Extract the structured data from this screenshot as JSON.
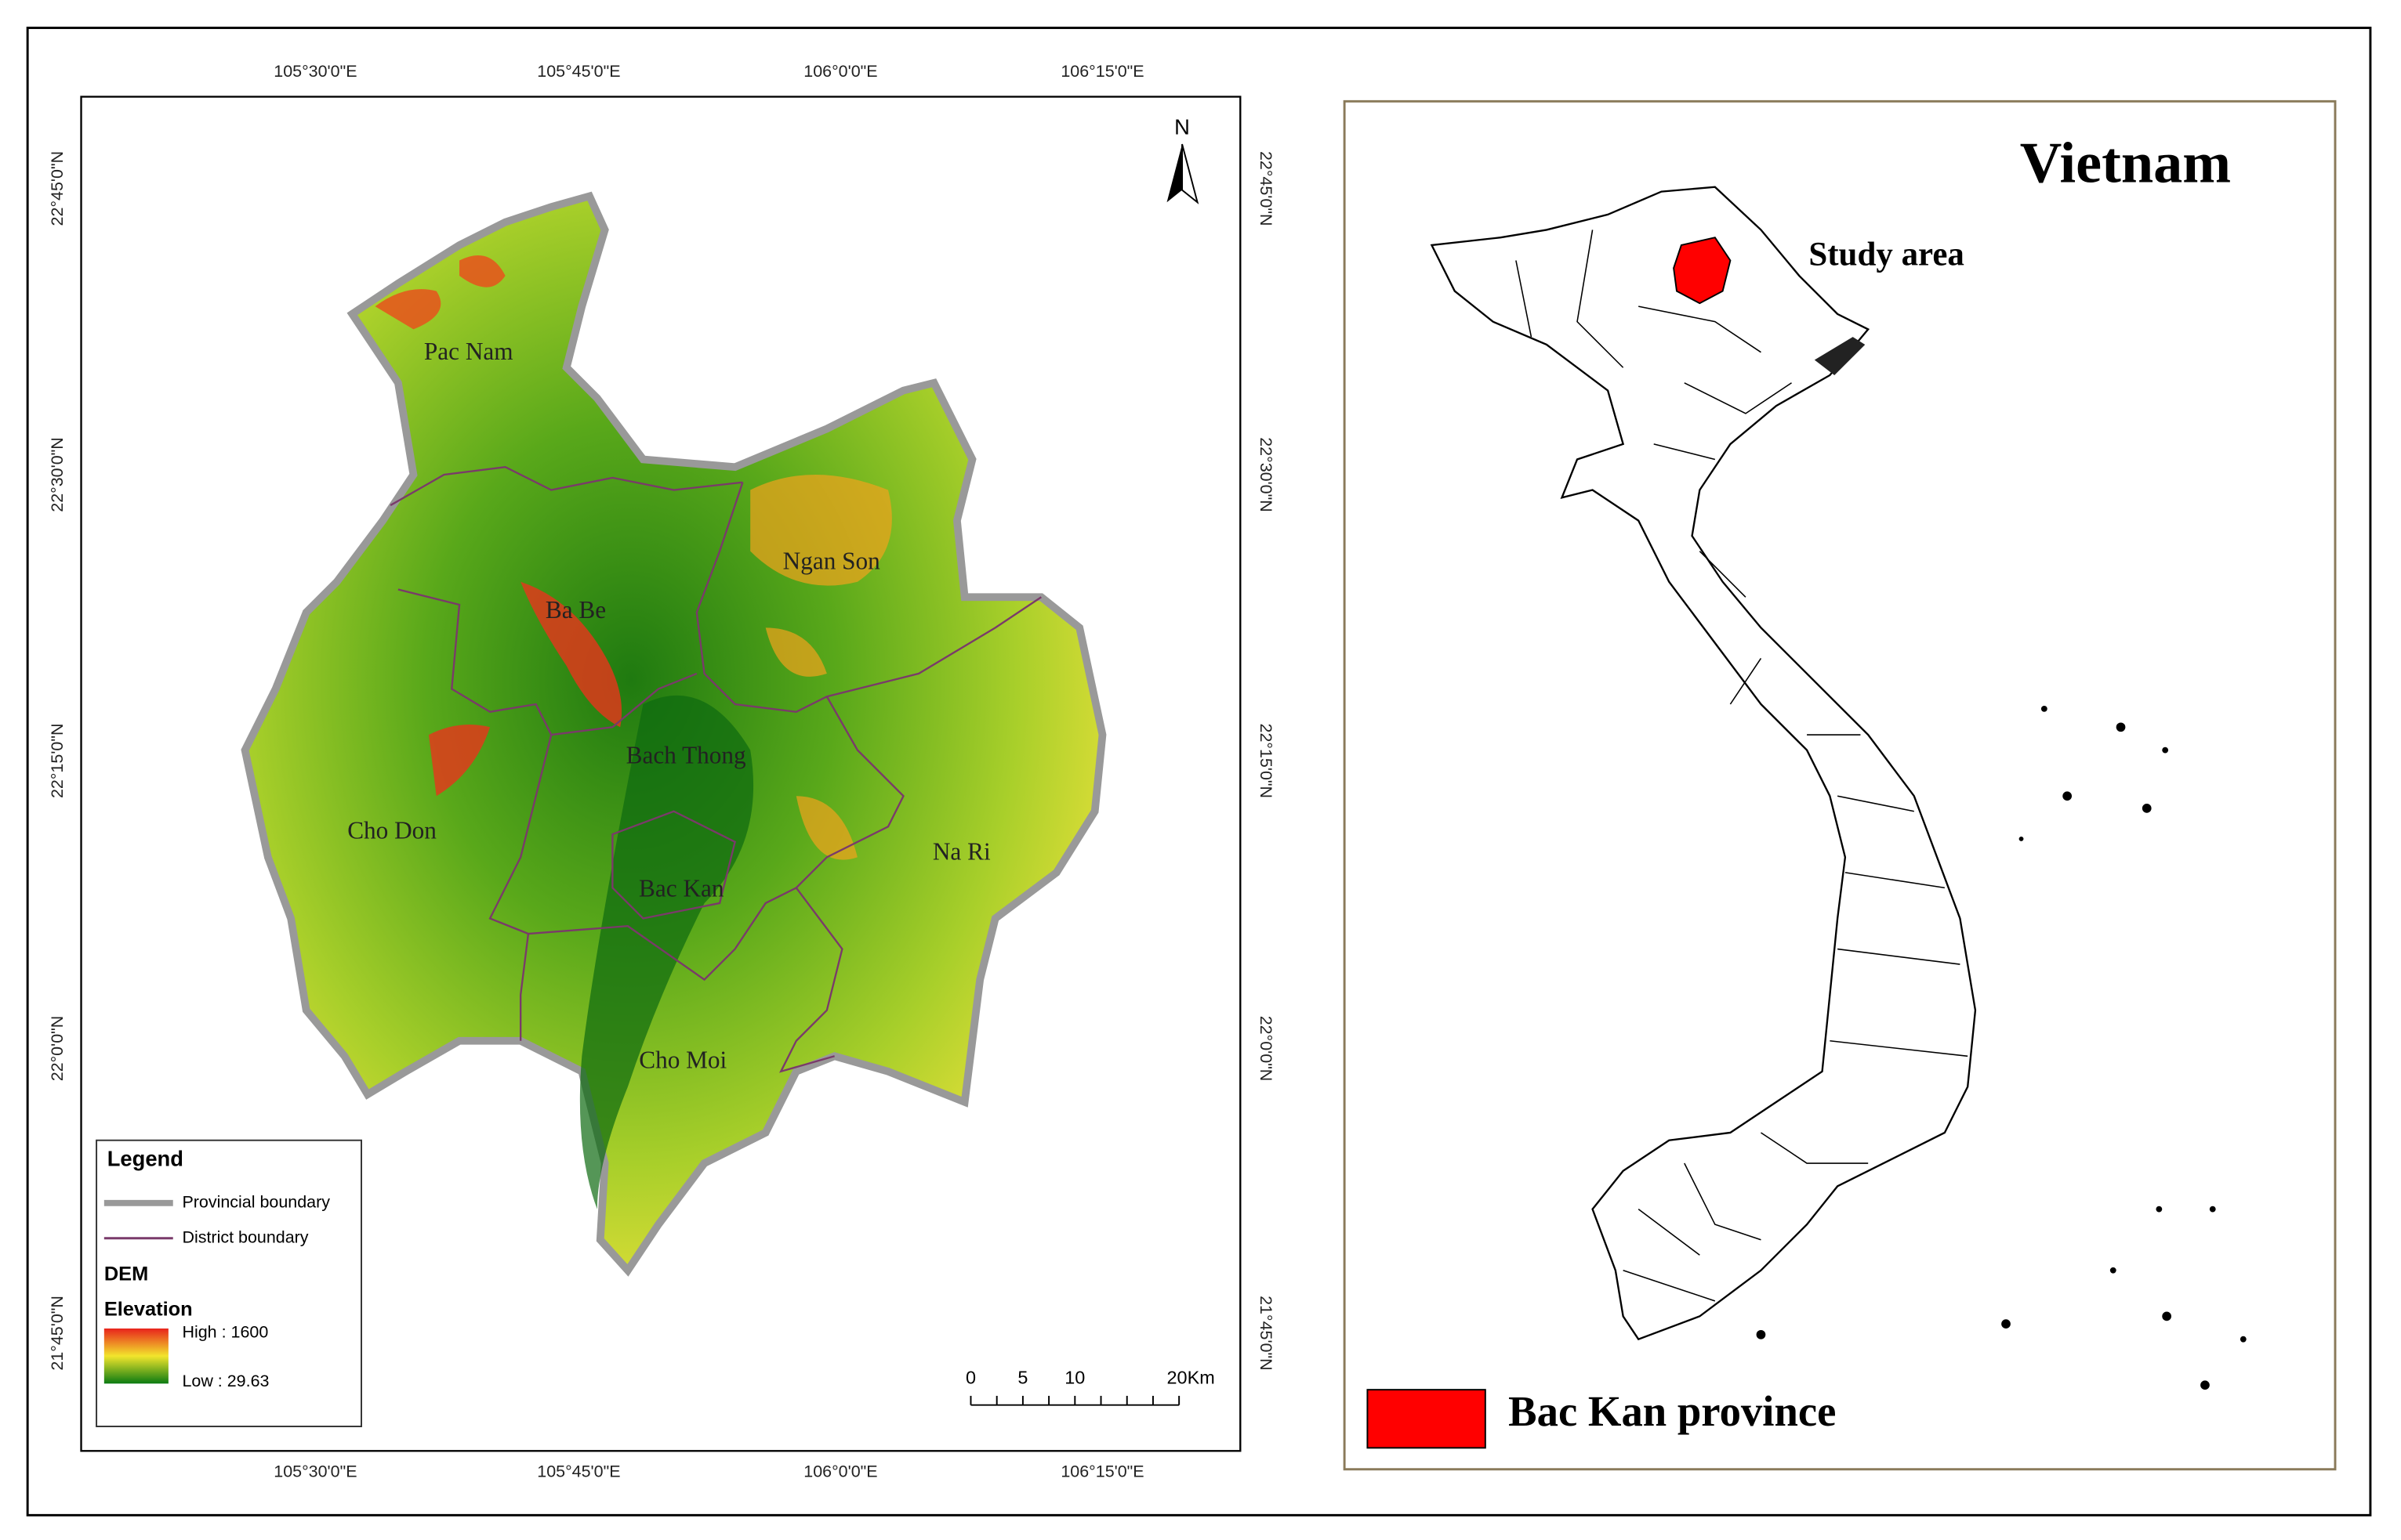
{
  "left_map": {
    "top_labels": [
      "105°30'0\"E",
      "105°45'0\"E",
      "106°0'0\"E",
      "106°15'0\"E"
    ],
    "bottom_labels": [
      "105°30'0\"E",
      "105°45'0\"E",
      "106°0'0\"E",
      "106°15'0\"E"
    ],
    "left_labels": [
      "22°45'0\"N",
      "22°30'0\"N",
      "22°15'0\"N",
      "22°0'0\"N",
      "21°45'0\"N"
    ],
    "right_labels": [
      "22°45'0\"N",
      "22°30'0\"N",
      "22°15'0\"N",
      "22°0'0\"N",
      "21°45'0\"N"
    ],
    "north": "N",
    "districts": [
      "Pac Nam",
      "Ba Be",
      "Ngan Son",
      "Bach Thong",
      "Cho Don",
      "Bac Kan",
      "Na Ri",
      "Cho Moi"
    ],
    "legend": {
      "title": "Legend",
      "items": [
        "Provincial boundary",
        "District boundary"
      ],
      "dem": "DEM",
      "elevation": "Elevation",
      "high": "High : 1600",
      "low": "Low : 29.63"
    },
    "scale": [
      "0",
      "5",
      "10",
      "20Km"
    ]
  },
  "right_map": {
    "title": "Vietnam",
    "study_area": "Study area",
    "legend_label": "Bac Kan province"
  }
}
